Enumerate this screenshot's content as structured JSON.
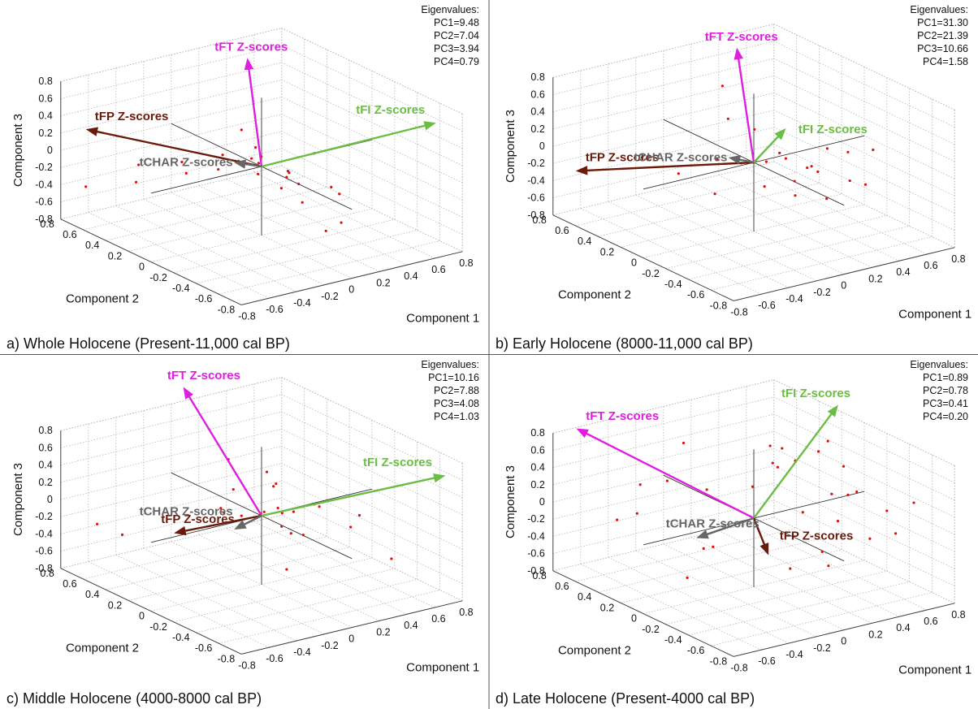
{
  "chart_data": [
    {
      "type": "biplot",
      "caption": "a) Whole Holocene (Present-11,000 cal BP)",
      "xlabel": "Component 1",
      "ylabel": "Component 2",
      "zlabel": "Component 3",
      "xlim": [
        -0.8,
        0.8
      ],
      "ylim": [
        -0.8,
        0.8
      ],
      "zlim": [
        -0.8,
        0.8
      ],
      "xticks": [
        -0.8,
        -0.6,
        -0.4,
        -0.2,
        0,
        0.2,
        0.4,
        0.6,
        0.8
      ],
      "yticks": [
        -0.8,
        -0.6,
        -0.4,
        -0.2,
        0,
        0.2,
        0.4,
        0.6,
        0.8
      ],
      "zticks": [
        -0.8,
        -0.6,
        -0.4,
        -0.2,
        0,
        0.2,
        0.4,
        0.6,
        0.8
      ],
      "grid": true,
      "eigenvalues_title": "Eigenvalues:",
      "eigenvalues": [
        {
          "value": 9.48,
          "label": "PC1=9.48"
        },
        {
          "value": 7.04,
          "label": "PC2=7.04"
        },
        {
          "value": 3.94,
          "label": "PC3=3.94"
        },
        {
          "value": 0.79,
          "label": "PC4=0.79"
        }
      ],
      "points": {
        "color": "#dd1111",
        "x": [
          0.02,
          -0.05,
          0.08,
          0.1,
          -0.1,
          0.15,
          0.05,
          -0.02,
          0.2,
          -0.15,
          0.3,
          -0.3,
          0.12,
          -0.5,
          -0.7,
          0.4,
          0.25,
          -0.2,
          0.05,
          0.35,
          -0.4,
          0.18,
          0.1,
          -0.25,
          0.3
        ],
        "y": [
          0.05,
          -0.03,
          0.1,
          -0.1,
          0.08,
          -0.05,
          0.15,
          -0.2,
          0.0,
          0.2,
          -0.25,
          0.3,
          0.2,
          0.5,
          0.7,
          -0.2,
          -0.4,
          0.1,
          -0.3,
          0.1,
          0.6,
          -0.35,
          0.3,
          0.4,
          -0.1
        ],
        "z": [
          0.0,
          -0.05,
          0.02,
          -0.1,
          0.05,
          -0.08,
          -0.02,
          -0.12,
          -0.15,
          -0.1,
          -0.2,
          -0.15,
          0.05,
          -0.3,
          -0.4,
          -0.35,
          -0.5,
          0.15,
          -0.25,
          -0.4,
          -0.2,
          -0.6,
          0.2,
          -0.1,
          0.1
        ]
      },
      "vectors": [
        {
          "name": "tFT Z-scores",
          "color": "#e01ee0",
          "x": -0.1,
          "y": 0,
          "z": 1.27
        },
        {
          "name": "tFI Z-scores",
          "color": "#6cbd45",
          "x": 1.0,
          "y": -0.3,
          "z": 0.3
        },
        {
          "name": "tFP Z-scores",
          "color": "#6b1a0a",
          "x": -0.6,
          "y": 0.8,
          "z": 0.16
        },
        {
          "name": "tCHAR Z-scores",
          "color": "#666666",
          "x": -0.1,
          "y": 0.1,
          "z": 0.02
        }
      ]
    },
    {
      "type": "biplot",
      "caption": "b) Early Holocene (8000-11,000 cal BP)",
      "xlabel": "Component 1",
      "ylabel": "Component 2",
      "zlabel": "Component 3",
      "xlim": [
        -0.8,
        0.8
      ],
      "ylim": [
        -0.8,
        0.8
      ],
      "zlim": [
        -0.8,
        0.8
      ],
      "xticks": [
        -0.8,
        -0.6,
        -0.4,
        -0.2,
        0,
        0.2,
        0.4,
        0.6,
        0.8
      ],
      "yticks": [
        -0.8,
        -0.6,
        -0.4,
        -0.2,
        0,
        0.2,
        0.4,
        0.6,
        0.8
      ],
      "zticks": [
        -0.8,
        -0.6,
        -0.4,
        -0.2,
        0,
        0.2,
        0.4,
        0.6,
        0.8
      ],
      "grid": true,
      "eigenvalues_title": "Eigenvalues:",
      "eigenvalues": [
        {
          "value": 31.3,
          "label": "PC1=31.30"
        },
        {
          "value": 21.39,
          "label": "PC2=21.39"
        },
        {
          "value": 10.66,
          "label": "PC3=10.66"
        },
        {
          "value": 1.58,
          "label": "PC4=1.58"
        }
      ],
      "points": {
        "color": "#dd1111",
        "x": [
          0.0,
          0.05,
          -0.05,
          0.3,
          0.45,
          0.6,
          0.5,
          0.35,
          0.2,
          0.25,
          -0.1,
          -0.3,
          -0.2,
          0.15,
          0.4,
          0.55,
          0.1,
          -0.4,
          0.3,
          0.7,
          0.05,
          0.2,
          -0.15,
          0.45,
          0.1
        ],
        "y": [
          0.0,
          -0.05,
          0.05,
          -0.2,
          -0.3,
          -0.1,
          0.1,
          0.2,
          -0.4,
          0.3,
          0.2,
          0.3,
          0.1,
          -0.1,
          -0.5,
          0.2,
          0.4,
          0.5,
          0.0,
          -0.2,
          -0.3,
          0.15,
          -0.2,
          -0.1,
          0.35
        ],
        "z": [
          0.0,
          0.02,
          -0.02,
          -0.1,
          -0.2,
          -0.05,
          -0.3,
          -0.15,
          -0.25,
          0.1,
          -0.05,
          -0.2,
          -0.35,
          0.05,
          -0.1,
          -0.4,
          0.6,
          -0.1,
          -0.5,
          0.0,
          -0.05,
          -0.45,
          0.2,
          0.05,
          0.25
        ]
      },
      "vectors": [
        {
          "name": "tFT Z-scores",
          "color": "#e01ee0",
          "x": -0.12,
          "y": 0,
          "z": 1.35
        },
        {
          "name": "tFI Z-scores",
          "color": "#6cbd45",
          "x": 0.22,
          "y": 0,
          "z": 0.29
        },
        {
          "name": "tFP Z-scores",
          "color": "#6b1a0a",
          "x": -0.78,
          "y": 0.6,
          "z": -0.17
        },
        {
          "name": "tCHAR Z-scores",
          "color": "#666666",
          "x": -0.1,
          "y": 0.08,
          "z": 0.04
        }
      ]
    },
    {
      "type": "biplot",
      "caption": "c) Middle Holocene (4000-8000 cal BP)",
      "xlabel": "Component 1",
      "ylabel": "Component 2",
      "zlabel": "Component 3",
      "xlim": [
        -0.8,
        0.8
      ],
      "ylim": [
        -0.8,
        0.8
      ],
      "zlim": [
        -0.8,
        0.8
      ],
      "xticks": [
        -0.8,
        -0.6,
        -0.4,
        -0.2,
        0,
        0.2,
        0.4,
        0.6,
        0.8
      ],
      "yticks": [
        -0.8,
        -0.6,
        -0.4,
        -0.2,
        0,
        0.2,
        0.4,
        0.6,
        0.8
      ],
      "zticks": [
        -0.8,
        -0.6,
        -0.4,
        -0.2,
        0,
        0.2,
        0.4,
        0.6,
        0.8
      ],
      "grid": true,
      "eigenvalues_title": "Eigenvalues:",
      "eigenvalues": [
        {
          "value": 10.16,
          "label": "PC1=10.16"
        },
        {
          "value": 7.88,
          "label": "PC2=7.88"
        },
        {
          "value": 4.08,
          "label": "PC3=4.08"
        },
        {
          "value": 1.03,
          "label": "PC4=1.03"
        }
      ],
      "points": {
        "color": "#dd1111",
        "x": [
          0.02,
          -0.03,
          0.06,
          0.1,
          -0.08,
          0.15,
          0.2,
          -0.15,
          0.3,
          0.05,
          0.25,
          -0.05,
          0.4,
          0.12,
          -0.6,
          -0.7,
          0.1,
          0.5,
          0.3,
          -0.2,
          0.0,
          0.35,
          0.18,
          -0.1,
          0.45
        ],
        "y": [
          0.03,
          -0.02,
          0.05,
          -0.06,
          0.08,
          -0.1,
          0.1,
          0.15,
          -0.1,
          -0.2,
          0.2,
          0.3,
          -0.3,
          0.1,
          0.5,
          0.6,
          -0.1,
          0.1,
          -0.5,
          0.05,
          0.25,
          0.3,
          -0.15,
          -0.3,
          -0.6
        ],
        "z": [
          0.0,
          0.02,
          -0.01,
          0.03,
          -0.02,
          0.05,
          -0.05,
          0.0,
          0.08,
          -0.1,
          0.12,
          -0.08,
          -0.1,
          0.4,
          -0.3,
          -0.2,
          -0.6,
          -0.15,
          0.2,
          0.7,
          0.15,
          0.05,
          -0.2,
          0.1,
          -0.3
        ]
      },
      "vectors": [
        {
          "name": "tFT Z-scores",
          "color": "#e01ee0",
          "x": -0.23,
          "y": 0.4,
          "z": 1.31
        },
        {
          "name": "tFI Z-scores",
          "color": "#6cbd45",
          "x": 1.15,
          "y": -0.2,
          "z": 0.14
        },
        {
          "name": "tFP Z-scores",
          "color": "#6b1a0a",
          "x": -0.37,
          "y": 0.3,
          "z": -0.24
        },
        {
          "name": "tCHAR Z-scores",
          "color": "#666666",
          "x": -0.1,
          "y": 0.1,
          "z": -0.17
        }
      ]
    },
    {
      "type": "biplot",
      "caption": "d) Late Holocene (Present-4000 cal BP)",
      "xlabel": "Component 1",
      "ylabel": "Component 2",
      "zlabel": "Component 3",
      "xlim": [
        -0.8,
        0.8
      ],
      "ylim": [
        -0.8,
        0.8
      ],
      "zlim": [
        -0.8,
        0.8
      ],
      "xticks": [
        -0.8,
        -0.6,
        -0.4,
        -0.2,
        0,
        0.2,
        0.4,
        0.6,
        0.8
      ],
      "yticks": [
        -0.8,
        -0.6,
        -0.4,
        -0.2,
        0,
        0.2,
        0.4,
        0.6,
        0.8
      ],
      "zticks": [
        -0.8,
        -0.6,
        -0.4,
        -0.2,
        0,
        0.2,
        0.4,
        0.6,
        0.8
      ],
      "grid": true,
      "eigenvalues_title": "Eigenvalues:",
      "eigenvalues": [
        {
          "value": 0.89,
          "label": "PC1=0.89"
        },
        {
          "value": 0.78,
          "label": "PC2=0.78"
        },
        {
          "value": 0.41,
          "label": "PC3=0.41"
        },
        {
          "value": 0.2,
          "label": "PC4=0.20"
        }
      ],
      "points": {
        "color": "#dd1111",
        "x": [
          0.5,
          0.6,
          0.3,
          0.7,
          0.4,
          0.2,
          -0.3,
          -0.5,
          -0.6,
          0.1,
          0.55,
          0.8,
          0.35,
          -0.2,
          0.45,
          0.65,
          -0.1,
          0.25,
          0.75,
          0.15,
          -0.4,
          0.5,
          0.3,
          0.6,
          -0.25,
          0.05,
          0.4,
          0.7,
          -0.05,
          0.2
        ],
        "y": [
          -0.3,
          -0.1,
          0.2,
          -0.4,
          0.5,
          -0.5,
          0.4,
          0.6,
          0.3,
          -0.2,
          0.1,
          -0.2,
          -0.6,
          0.2,
          0.3,
          0.0,
          0.5,
          -0.3,
          -0.5,
          0.6,
          0.1,
          0.4,
          0.0,
          0.3,
          0.7,
          -0.6,
          -0.2,
          0.2,
          0.3,
          0.1
        ],
        "z": [
          0.3,
          0.1,
          0.4,
          -0.2,
          -0.1,
          0.2,
          0.3,
          -0.2,
          0.1,
          -0.5,
          0.5,
          -0.1,
          0.0,
          -0.4,
          0.45,
          0.35,
          0.6,
          -0.3,
          0.2,
          -0.1,
          -0.6,
          0.15,
          0.55,
          -0.35,
          0.05,
          -0.2,
          0.25,
          0.5,
          -0.5,
          0.7
        ]
      },
      "vectors": [
        {
          "name": "tFT Z-scores",
          "color": "#e01ee0",
          "x": -0.86,
          "y": 0.5,
          "z": 1.05
        },
        {
          "name": "tFI Z-scores",
          "color": "#6cbd45",
          "x": 0.6,
          "y": 0,
          "z": 1.06
        },
        {
          "name": "tFP Z-scores",
          "color": "#6b1a0a",
          "x": 0.1,
          "y": 0,
          "z": -0.44
        },
        {
          "name": "tCHAR Z-scores",
          "color": "#666666",
          "x": -0.3,
          "y": 0.12,
          "z": -0.18
        }
      ]
    }
  ]
}
